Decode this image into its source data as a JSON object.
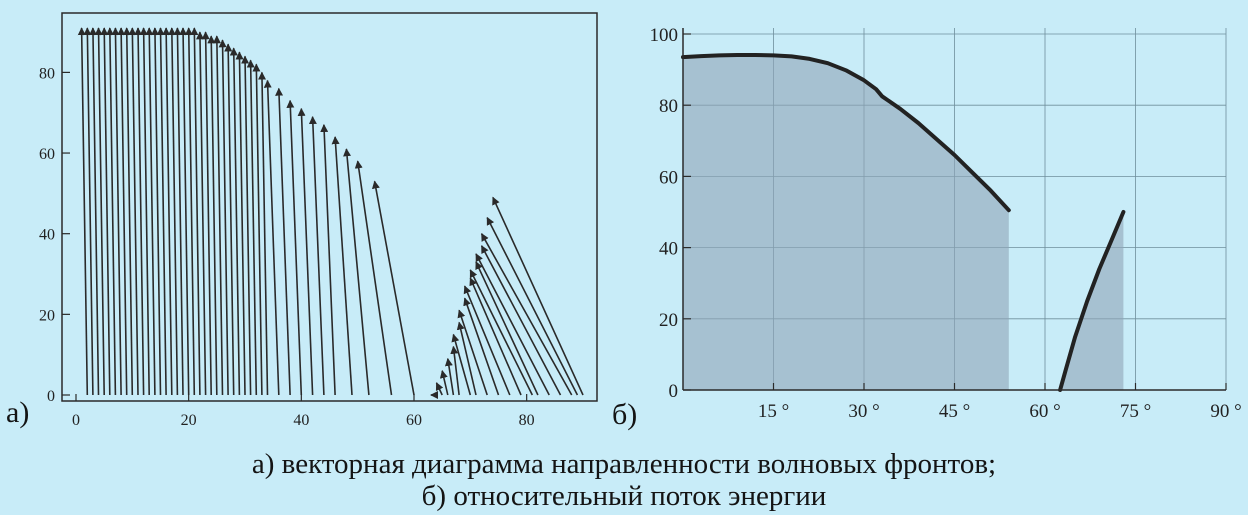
{
  "captions": {
    "line1": "а) векторная диаграмма направленности волновых фронтов;",
    "line2": "б) относительный поток энергии"
  },
  "colors": {
    "background": "#c8ecf8",
    "axis": "#2a2a2a",
    "grid": "#6f8f9c",
    "curve": "#222222",
    "fill": "#8fa5b8"
  },
  "chart_data": [
    {
      "type": "line",
      "label": "а)",
      "xlim": [
        0,
        90
      ],
      "ylim": [
        0,
        92
      ],
      "xticks": [
        0,
        20,
        40,
        60,
        80
      ],
      "yticks": [
        0,
        20,
        40,
        60,
        80
      ],
      "grid": false,
      "arrows": [
        [
          2,
          0,
          1,
          91
        ],
        [
          3,
          0,
          2,
          91
        ],
        [
          4,
          0,
          3,
          91
        ],
        [
          5,
          0,
          4,
          91
        ],
        [
          6,
          0,
          5,
          91
        ],
        [
          7,
          0,
          6,
          91
        ],
        [
          8,
          0,
          7,
          91
        ],
        [
          9,
          0,
          8,
          91
        ],
        [
          10,
          0,
          9,
          91
        ],
        [
          11,
          0,
          10,
          91
        ],
        [
          12,
          0,
          11,
          91
        ],
        [
          13,
          0,
          12,
          91
        ],
        [
          14,
          0,
          13,
          91
        ],
        [
          15,
          0,
          14,
          91
        ],
        [
          16,
          0,
          15,
          91
        ],
        [
          17,
          0,
          16,
          91
        ],
        [
          18,
          0,
          17,
          91
        ],
        [
          19,
          0,
          18,
          91
        ],
        [
          20,
          0,
          19,
          91
        ],
        [
          21,
          0,
          20,
          91
        ],
        [
          22,
          0,
          21,
          91
        ],
        [
          23,
          0,
          22,
          90
        ],
        [
          24,
          0,
          23,
          90
        ],
        [
          25,
          0,
          24,
          89
        ],
        [
          26,
          0,
          25,
          89
        ],
        [
          27,
          0,
          26,
          88
        ],
        [
          28,
          0,
          27,
          87
        ],
        [
          29,
          0,
          28,
          86
        ],
        [
          30,
          0,
          29,
          85
        ],
        [
          31,
          0,
          30,
          84
        ],
        [
          32,
          0,
          31,
          83
        ],
        [
          33,
          0,
          32,
          82
        ],
        [
          34,
          0,
          33,
          80
        ],
        [
          36,
          0,
          34,
          78
        ],
        [
          38,
          0,
          36,
          76
        ],
        [
          40,
          0,
          38,
          73
        ],
        [
          42,
          0,
          40,
          71
        ],
        [
          44,
          0,
          42,
          69
        ],
        [
          46,
          0,
          44,
          67
        ],
        [
          49,
          0,
          46,
          64
        ],
        [
          52,
          0,
          48,
          61
        ],
        [
          56,
          0,
          50,
          58
        ],
        [
          60,
          0,
          53,
          53
        ],
        [
          64,
          0,
          63,
          0
        ],
        [
          65,
          0,
          64,
          3
        ],
        [
          66,
          0,
          65,
          6
        ],
        [
          67,
          0,
          66,
          9
        ],
        [
          68,
          0,
          67,
          12
        ],
        [
          70,
          0,
          67,
          15
        ],
        [
          71,
          0,
          68,
          18
        ],
        [
          73,
          0,
          68,
          21
        ],
        [
          75,
          0,
          69,
          24
        ],
        [
          77,
          0,
          69,
          27
        ],
        [
          79,
          0,
          70,
          29
        ],
        [
          81,
          0,
          70,
          31
        ],
        [
          82,
          0,
          71,
          33
        ],
        [
          84,
          0,
          71,
          35
        ],
        [
          86,
          0,
          72,
          37
        ],
        [
          88,
          0,
          72,
          40
        ],
        [
          89,
          0,
          73,
          44
        ],
        [
          90,
          0,
          74,
          49
        ]
      ]
    },
    {
      "type": "area",
      "label": "б)",
      "xlim": [
        0,
        90
      ],
      "ylim": [
        0,
        100
      ],
      "xticks": [
        15,
        30,
        45,
        60,
        75,
        90
      ],
      "xtick_labels": [
        "15 °",
        "30 °",
        "45 °",
        "60 °",
        "75 °",
        "90 °"
      ],
      "yticks": [
        0,
        20,
        40,
        60,
        80,
        100
      ],
      "grid": true,
      "series": [
        {
          "x": [
            0,
            3,
            6,
            9,
            12,
            15,
            18,
            21,
            24,
            27,
            30,
            32,
            33,
            36,
            39,
            42,
            45,
            48,
            51,
            54
          ],
          "y": [
            93.5,
            93.8,
            94,
            94.1,
            94.1,
            94,
            93.7,
            93,
            91.8,
            89.8,
            87,
            84.5,
            82.5,
            79,
            75,
            70.5,
            66,
            61,
            56,
            50.5
          ]
        },
        {
          "x": [
            62.5,
            63.5,
            65,
            67,
            69,
            71,
            73
          ],
          "y": [
            0,
            6,
            15,
            25,
            34,
            42,
            50
          ]
        }
      ]
    }
  ]
}
